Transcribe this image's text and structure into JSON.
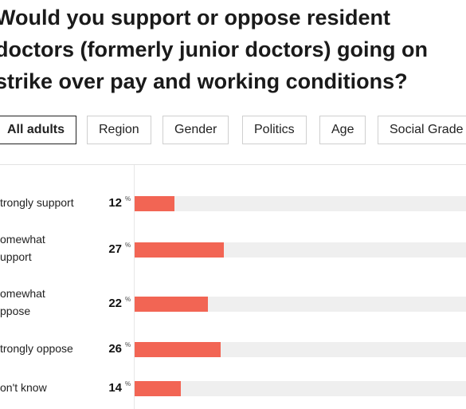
{
  "title_lines": [
    "Would you support or oppose resident",
    "doctors (formerly junior doctors) going on",
    "strike over pay and working conditions?"
  ],
  "filters": {
    "tabs": [
      "All adults",
      "Region",
      "Gender",
      "Politics",
      "Age",
      "Social Grade"
    ],
    "active": "All adults"
  },
  "colors": {
    "bar": "#f26554",
    "track": "#efefef"
  },
  "chart_data": {
    "type": "bar",
    "orientation": "horizontal",
    "unit": "%",
    "xlim": [
      0,
      100
    ],
    "grid": false,
    "categories": [
      [
        "trongly support"
      ],
      [
        "omewhat",
        "upport"
      ],
      [
        "omewhat",
        "ppose"
      ],
      [
        "trongly oppose"
      ],
      [
        "on't know"
      ]
    ],
    "values": [
      12,
      27,
      22,
      26,
      14
    ]
  }
}
